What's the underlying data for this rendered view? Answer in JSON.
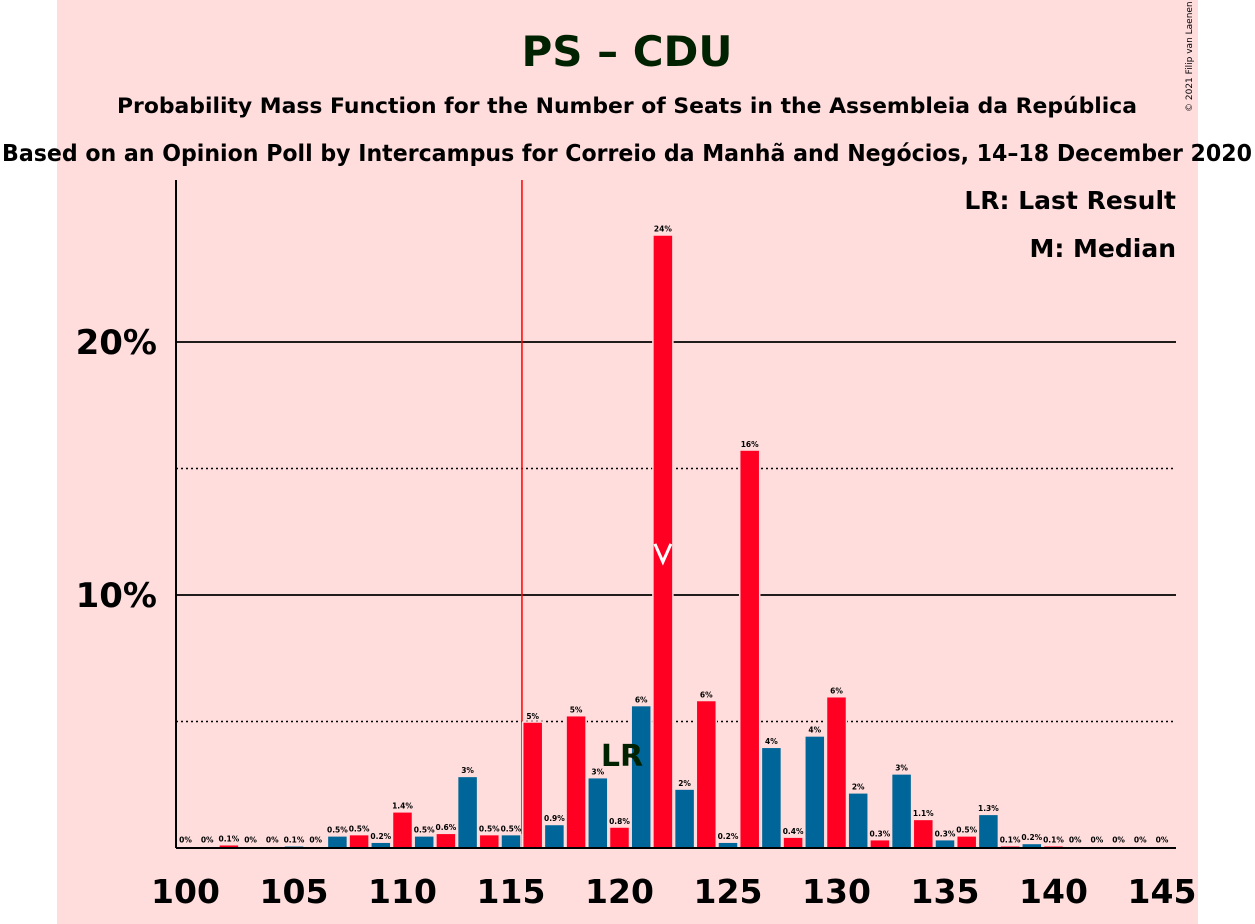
{
  "chart_data": {
    "type": "bar",
    "title": "PS – CDU",
    "subtitle": "Probability Mass Function for the Number of Seats in the Assembleia da República",
    "source_line": "Based on an Opinion Poll by Intercampus for Correio da Manhã and Negócios, 14–18 December 2020",
    "copyright": "© 2021 Filip van Laenen",
    "legend": [
      "LR: Last Result",
      "M: Median"
    ],
    "legend_position": "top-right",
    "xlim": [
      100,
      145
    ],
    "x_ticks": [
      "100",
      "105",
      "110",
      "115",
      "120",
      "125",
      "130",
      "135",
      "140",
      "145"
    ],
    "ylim": [
      0,
      26
    ],
    "y_ticks": [
      "10%",
      "20%"
    ],
    "last_result": 116,
    "last_result_label": "LR",
    "median": 122,
    "colors": {
      "even": "#ff0022",
      "odd": "#006699",
      "last_result_line": "#ff0000",
      "gridline": "#000000",
      "title": "#002200",
      "background": "#ffdddd"
    },
    "x": [
      100,
      101,
      102,
      103,
      104,
      105,
      106,
      107,
      108,
      109,
      110,
      111,
      112,
      113,
      114,
      115,
      116,
      117,
      118,
      119,
      120,
      121,
      122,
      123,
      124,
      125,
      126,
      127,
      128,
      129,
      130,
      131,
      132,
      133,
      134,
      135,
      136,
      137,
      138,
      139,
      140,
      141,
      142,
      143,
      144,
      145
    ],
    "values": [
      0,
      0,
      0.1,
      0,
      0,
      0.05,
      0,
      0.45,
      0.5,
      0.2,
      1.4,
      0.45,
      0.55,
      2.8,
      0.5,
      0.5,
      4.95,
      0.9,
      5.2,
      2.75,
      0.8,
      5.6,
      24.2,
      2.3,
      5.8,
      0.2,
      15.7,
      3.95,
      0.4,
      4.4,
      5.95,
      2.15,
      0.3,
      2.9,
      1.1,
      0.3,
      0.45,
      1.3,
      0.05,
      0.15,
      0.05,
      0,
      0,
      0,
      0,
      0
    ],
    "labels": [
      "0%",
      "0%",
      "0.1%",
      "0%",
      "0%",
      "0.1%",
      "0%",
      "0.5%",
      "0.5%",
      "0.2%",
      "1.4%",
      "0.5%",
      "0.6%",
      "3%",
      "0.5%",
      "0.5%",
      "5%",
      "0.9%",
      "5%",
      "3%",
      "0.8%",
      "6%",
      "24%",
      "2%",
      "6%",
      "0.2%",
      "16%",
      "4%",
      "0.4%",
      "4%",
      "6%",
      "2%",
      "0.3%",
      "3%",
      "1.1%",
      "0.3%",
      "0.5%",
      "1.3%",
      "0.1%",
      "0.2%",
      "0.1%",
      "0%",
      "0%",
      "0%",
      "0%",
      "0%"
    ]
  }
}
